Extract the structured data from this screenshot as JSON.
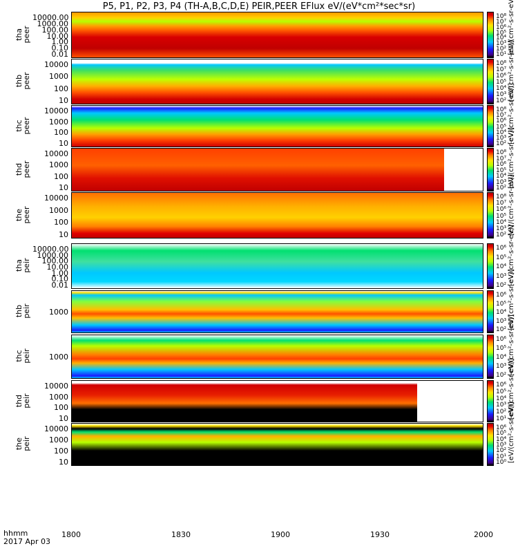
{
  "chart_data": [
    {
      "type": "heatmap",
      "title": "P5, P1, P2, P3, P4 (TH-A,B,C,D,E) PEIR,PEER EFlux eV/(eV*cm²*sec*sr)",
      "xlabel": "hhmm",
      "date": "2017 Apr 03",
      "x_ticks": [
        "1800",
        "1830",
        "1900",
        "1930",
        "2000"
      ],
      "xlim": [
        "1800",
        "2000"
      ],
      "color_scale": "log",
      "color_map": [
        "#000000",
        "#40008a",
        "#1b1bff",
        "#00c8ff",
        "#00e070",
        "#b8ff00",
        "#ffe400",
        "#ff8000",
        "#e60000",
        "#b00000"
      ],
      "colorbar_unit": "[eV/(cm²-s-sr-eV)]",
      "panels": [
        {
          "probe": "tha",
          "species": "peer",
          "ylabel": "tha\npeer",
          "y_ticks": [
            "10000.00",
            "1000.00",
            "100.00",
            "10.00",
            "1.00",
            "0.10",
            "0.01"
          ],
          "colorbar_ticks": [
            "10⁸",
            "10⁷",
            "10⁶",
            "10⁵",
            "10⁴",
            "10³",
            "10²",
            "10¹"
          ]
        },
        {
          "probe": "thb",
          "species": "peer",
          "ylabel": "thb\npeer",
          "y_ticks": [
            "10000",
            "1000",
            "100",
            "10"
          ],
          "colorbar_ticks": [
            "10⁸",
            "10⁷",
            "10⁶",
            "10⁵",
            "10⁴",
            "10³",
            "10²"
          ]
        },
        {
          "probe": "thc",
          "species": "peer",
          "ylabel": "thc\npeer",
          "y_ticks": [
            "10000",
            "1000",
            "100",
            "10"
          ],
          "colorbar_ticks": [
            "10⁸",
            "10⁷",
            "10⁶",
            "10⁵",
            "10⁴",
            "10³",
            "10²"
          ]
        },
        {
          "probe": "thd",
          "species": "peer",
          "ylabel": "thd\npeer",
          "y_ticks": [
            "10000",
            "1000",
            "100",
            "10"
          ],
          "colorbar_ticks": [
            "10⁸",
            "10⁷",
            "10⁶",
            "10⁵",
            "10⁴",
            "10³",
            "10²"
          ]
        },
        {
          "probe": "the",
          "species": "peer",
          "ylabel": "the\npeer",
          "y_ticks": [
            "10000",
            "1000",
            "100",
            "10"
          ],
          "colorbar_ticks": [
            "10⁸",
            "10⁷",
            "10⁶",
            "10⁵",
            "10⁴",
            "10³",
            "10²"
          ]
        },
        {
          "probe": "tha",
          "species": "peir",
          "ylabel": "tha\npeir",
          "y_ticks": [
            "10000.00",
            "1000.00",
            "100.00",
            "10.00",
            "1.00",
            "0.10",
            "0.01"
          ],
          "colorbar_ticks": [
            "10⁶",
            "10⁵",
            "10⁴",
            "10³",
            "10²"
          ]
        },
        {
          "probe": "thb",
          "species": "peir",
          "ylabel": "thb\npeir",
          "y_ticks": [
            "1000"
          ],
          "colorbar_ticks": [
            "10⁶",
            "10⁵",
            "10⁴",
            "10³",
            "10²"
          ]
        },
        {
          "probe": "thc",
          "species": "peir",
          "ylabel": "thc\npeir",
          "y_ticks": [
            "1000"
          ],
          "colorbar_ticks": [
            "10⁶",
            "10⁵",
            "10⁴",
            "10³",
            "10²"
          ]
        },
        {
          "probe": "thd",
          "species": "peir",
          "ylabel": "thd\npeir",
          "y_ticks": [
            "10000",
            "1000",
            "100",
            "10"
          ],
          "colorbar_ticks": [
            "10⁶",
            "10⁵",
            "10⁴",
            "10³",
            "10²",
            "10¹"
          ]
        },
        {
          "probe": "the",
          "species": "peir",
          "ylabel": "the\npeir",
          "y_ticks": [
            "10000",
            "1000",
            "100",
            "10"
          ],
          "colorbar_ticks": [
            "10⁶",
            "10⁵",
            "10⁴",
            "10³",
            "10²",
            "10¹",
            "10⁰"
          ]
        }
      ]
    }
  ]
}
